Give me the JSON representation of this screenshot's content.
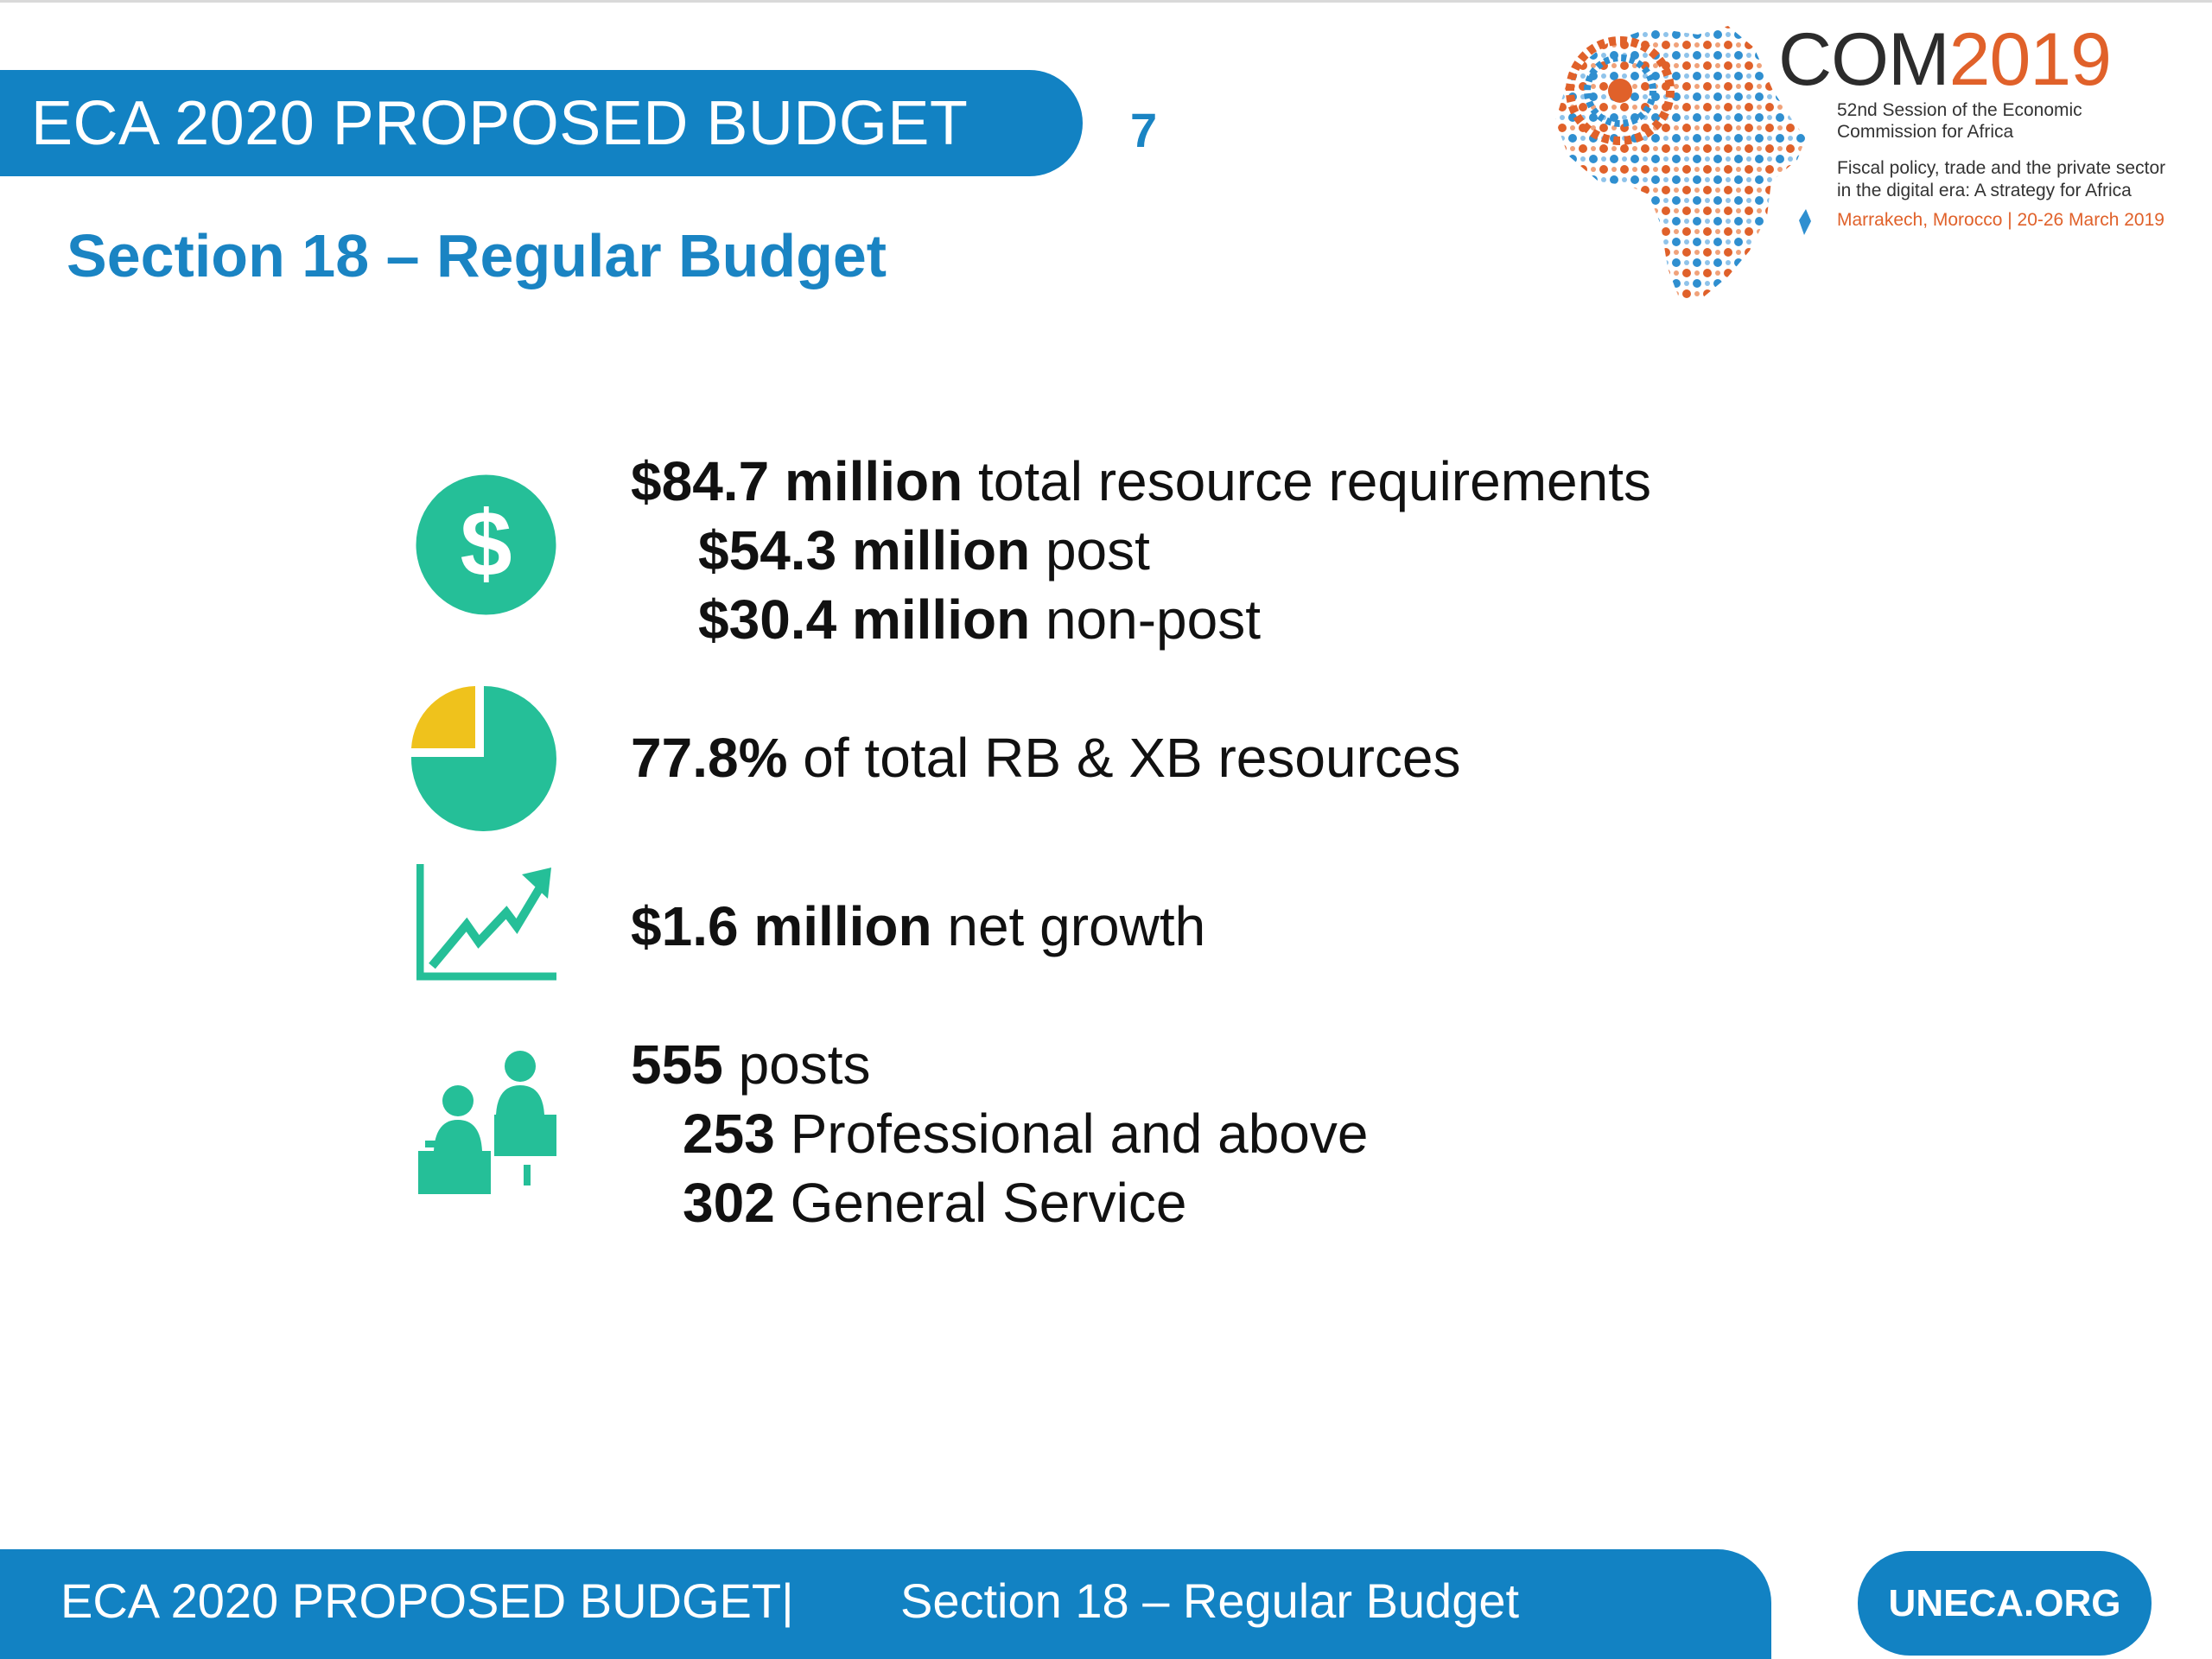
{
  "header": {
    "title": "ECA 2020 PROPOSED BUDGET",
    "slide_number": "7",
    "section_title": "Section 18 – Regular Budget"
  },
  "logo": {
    "brand_prefix": "COM",
    "brand_year": "2019",
    "line1": "52nd Session of the Economic",
    "line2": "Commission for Africa",
    "line3": "Fiscal policy, trade and the private sector",
    "line4": "in the digital era: A strategy for Africa",
    "line5": "Marrakech, Morocco | 20-26 March 2019",
    "colors": {
      "orange": "#e0612a",
      "blue": "#2f8fd0",
      "dark": "#2c2c2c"
    }
  },
  "stats": {
    "resources": {
      "icon": "dollar-icon",
      "total_value": "$84.7 million",
      "total_label": " total resource requirements",
      "post_value": "$54.3 million",
      "post_label": " post",
      "nonpost_value": "$30.4 million",
      "nonpost_label": " non-post"
    },
    "share": {
      "icon": "pie-chart-icon",
      "value": "77.8%",
      "label": " of total RB & XB resources"
    },
    "growth": {
      "icon": "growth-chart-icon",
      "value": "$1.6 million",
      "label": " net growth"
    },
    "posts": {
      "icon": "staff-icon",
      "total_value": "555",
      "total_label": " posts",
      "professional_value": "253",
      "professional_label": " Professional and above",
      "general_value": "302",
      "general_label": " General Service"
    }
  },
  "footer": {
    "left": "ECA 2020 PROPOSED BUDGET|",
    "right": "Section 18 – Regular Budget",
    "site": "UNECA.ORG"
  },
  "colors": {
    "brand_blue": "#1282c3",
    "icon_green": "#25bf98",
    "icon_yellow": "#efc21c"
  }
}
